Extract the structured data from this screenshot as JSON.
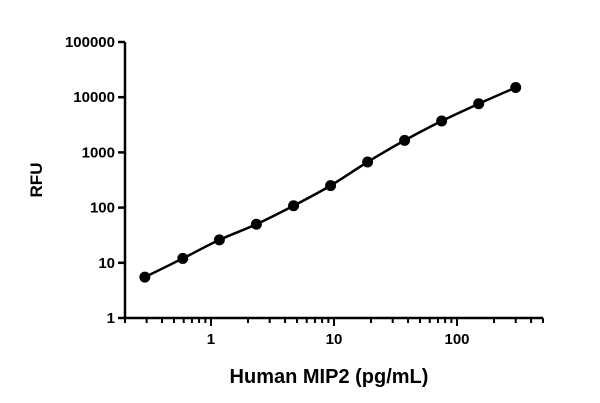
{
  "chart_data": {
    "type": "scatter",
    "xlabel": "Human MIP2 (pg/mL)",
    "ylabel": "RFU",
    "xscale": "log",
    "yscale": "log",
    "xlim": [
      0.2,
      500
    ],
    "ylim": [
      1,
      100000
    ],
    "x_tick_values": [
      1,
      10,
      100
    ],
    "x_tick_labels": [
      "1",
      "10",
      "100"
    ],
    "y_tick_values": [
      1,
      10,
      100,
      1000,
      10000,
      100000
    ],
    "y_tick_labels": [
      "1",
      "10",
      "100",
      "1000",
      "10000",
      "100000"
    ],
    "grid": false,
    "series": [
      {
        "x": [
          0.29,
          0.59,
          1.17,
          2.34,
          4.69,
          9.38,
          18.75,
          37.5,
          75,
          150,
          300
        ],
        "y": [
          5.5,
          12,
          26,
          50,
          108,
          250,
          670,
          1650,
          3700,
          7600,
          15000
        ],
        "color": "#000000",
        "fit_line": true
      }
    ]
  }
}
